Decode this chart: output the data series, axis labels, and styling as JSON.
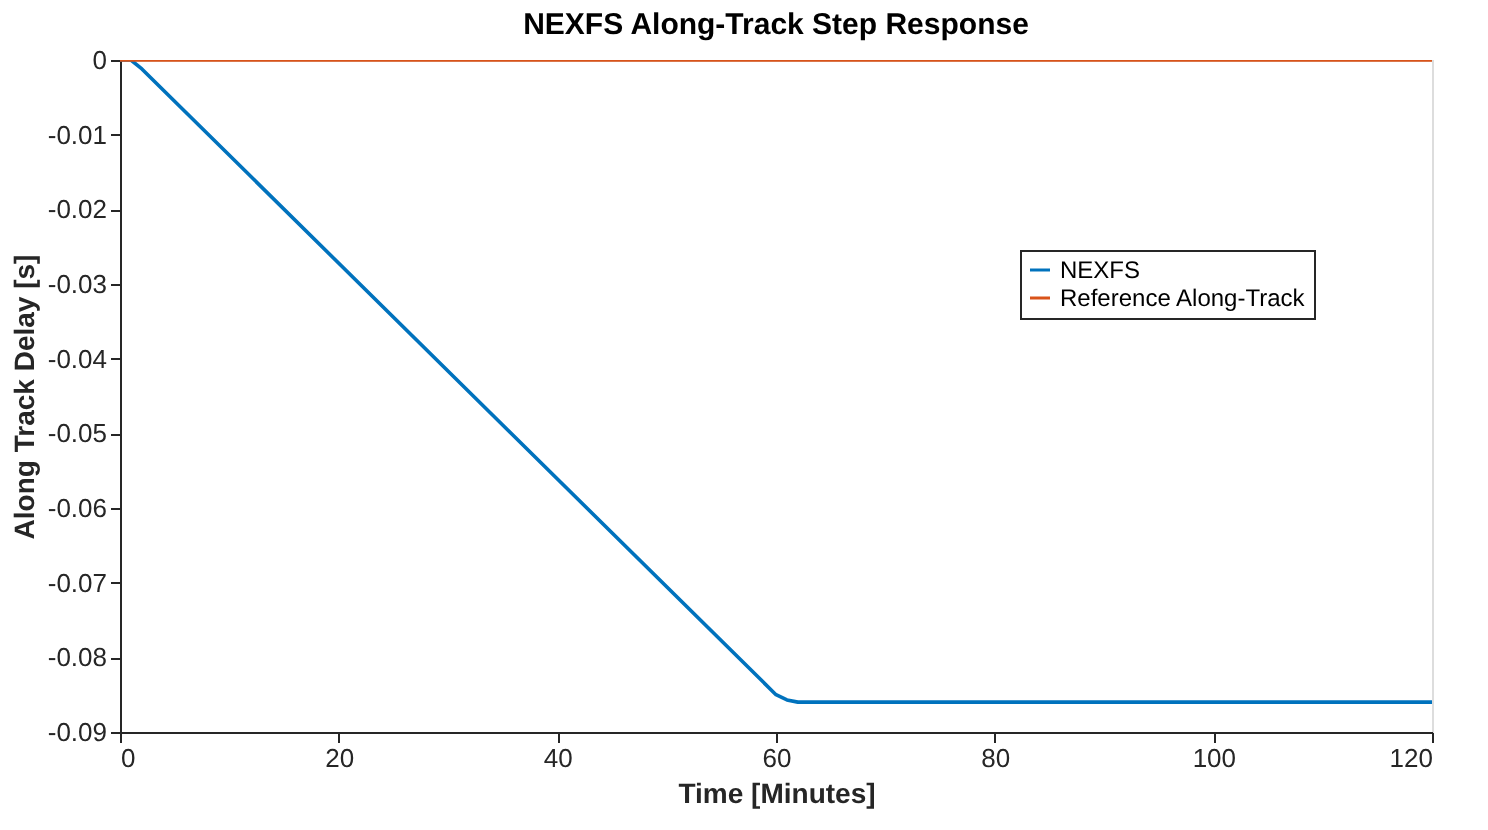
{
  "chart_data": {
    "type": "line",
    "title": "NEXFS Along-Track Step Response",
    "xlabel": "Time [Minutes]",
    "ylabel": "Along Track Delay [s]",
    "xlim": [
      0,
      120
    ],
    "xticks": [
      0,
      20,
      40,
      60,
      80,
      100,
      120
    ],
    "ylim": [
      -0.09,
      0
    ],
    "yticks": [
      {
        "value": -0.09,
        "label": "-0.09"
      },
      {
        "value": -0.08,
        "label": "-0.08"
      },
      {
        "value": -0.07,
        "label": "-0.07"
      },
      {
        "value": -0.06,
        "label": "-0.06"
      },
      {
        "value": -0.05,
        "label": "-0.05"
      },
      {
        "value": -0.04,
        "label": "-0.04"
      },
      {
        "value": -0.03,
        "label": "-0.03"
      },
      {
        "value": -0.02,
        "label": "-0.02"
      },
      {
        "value": -0.01,
        "label": "-0.01"
      },
      {
        "value": 0,
        "label": "0"
      }
    ],
    "grid": false,
    "legend": "right",
    "line_style": "solid",
    "marker": "none",
    "series": [
      {
        "name": "NEXFS",
        "color": "#0072bd",
        "x": [
          0,
          1,
          2,
          60,
          61,
          62,
          120
        ],
        "values": [
          0,
          0,
          -0.0012,
          -0.085,
          -0.0857,
          -0.086,
          -0.086
        ]
      },
      {
        "name": "Reference Along-Track",
        "color": "#d95319",
        "x": [
          0,
          120
        ],
        "values": [
          0,
          0
        ]
      }
    ]
  }
}
